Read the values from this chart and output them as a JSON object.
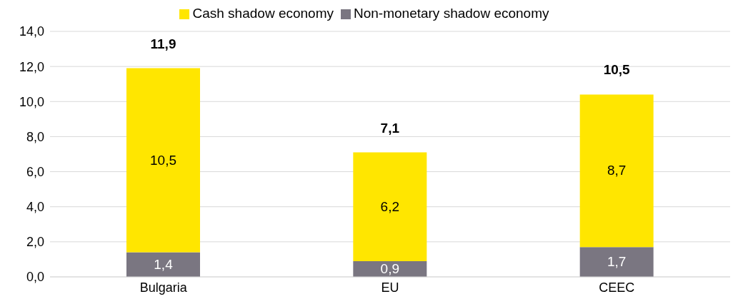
{
  "chart_data": {
    "type": "bar",
    "stacked": true,
    "categories": [
      "Bulgaria",
      "EU",
      "CEEC"
    ],
    "series": [
      {
        "name": "Non-monetary shadow economy",
        "color": "#7a7681",
        "values": [
          1.4,
          0.9,
          1.7
        ],
        "value_labels": [
          "1,4",
          "0,9",
          "1,7"
        ]
      },
      {
        "name": "Cash shadow economy",
        "color": "#ffe600",
        "values": [
          10.5,
          6.2,
          8.7
        ],
        "value_labels": [
          "10,5",
          "6,2",
          "8,7"
        ]
      }
    ],
    "totals": [
      "11,9",
      "7,1",
      "10,5"
    ],
    "ylim": [
      0,
      14
    ],
    "yticks": [
      {
        "value": 0,
        "label": "0,0"
      },
      {
        "value": 2,
        "label": "2,0"
      },
      {
        "value": 4,
        "label": "4,0"
      },
      {
        "value": 6,
        "label": "6,0"
      },
      {
        "value": 8,
        "label": "8,0"
      },
      {
        "value": 10,
        "label": "10,0"
      },
      {
        "value": 12,
        "label": "12,0"
      },
      {
        "value": 14,
        "label": "14,0"
      }
    ],
    "grid": "y",
    "legend": "top"
  }
}
